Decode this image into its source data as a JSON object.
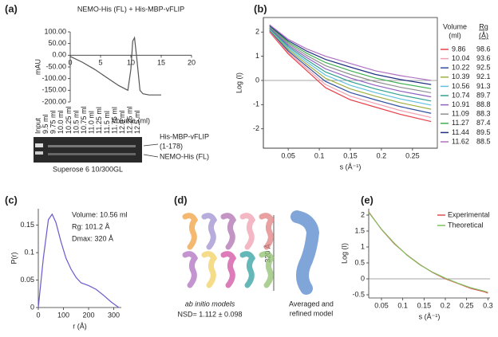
{
  "panel_labels": [
    "(a)",
    "(b)",
    "(c)",
    "(d)",
    "(e)"
  ],
  "gel": {
    "lanes": [
      "Input",
      "9.5 ml",
      "9.75 ml",
      "10.0 ml",
      "10.25 ml",
      "10.5 ml",
      "10.75 ml",
      "11.0 ml",
      "11.25 ml",
      "11.5 ml",
      "11.75 ml",
      "12.0 ml",
      "12.25 ml",
      "12.5 ml"
    ],
    "bands": [
      "His-MBP-vFLIP",
      "(1-178)",
      "NEMO-His (FL)"
    ],
    "column": "Superose 6 10/300GL"
  },
  "models": {
    "ab_initio": "ab initio models",
    "nsd": "NSD= 1.112 ± 0.098",
    "length": "320 Å",
    "averaged": [
      "Averaged and",
      "refined model"
    ]
  },
  "chart_data": [
    {
      "type": "line",
      "title": "NEMO-His (FL) + His-MBP-vFLIP",
      "x_label": "Volume (ml)",
      "y_label": "mAU",
      "color": "#555555",
      "zero_axis": true,
      "x": [
        0,
        2,
        4,
        6,
        8,
        9.5,
        10,
        10.3,
        10.6,
        11,
        11.5,
        12,
        13,
        15
      ],
      "values": [
        -5,
        -30,
        -60,
        -95,
        -130,
        -150,
        -60,
        60,
        75,
        -20,
        -150,
        -165,
        -170,
        -170
      ],
      "xlim": [
        0,
        20
      ],
      "xticks": [
        0,
        5,
        10,
        15,
        20
      ],
      "ylim": [
        -200,
        100
      ],
      "yticks": [
        {
          "value": 100,
          "label": "100.00"
        },
        {
          "value": 50,
          "label": "50.00"
        },
        {
          "value": 0,
          "label": "0.00"
        },
        {
          "value": -50,
          "label": "-50.00"
        },
        {
          "value": -100,
          "label": "-100.00"
        },
        {
          "value": -150,
          "label": "-150.00"
        },
        {
          "value": -200,
          "label": "-200.00"
        }
      ]
    },
    {
      "type": "line",
      "x_label": "s (Å⁻¹)",
      "y_label": "Log (I)",
      "frame": true,
      "zero_line": true,
      "legend_columns": [
        [
          "Volume",
          "(ml)"
        ],
        [
          "Rg",
          "(Å)"
        ]
      ],
      "x": [
        0.02,
        0.05,
        0.08,
        0.11,
        0.15,
        0.19,
        0.23,
        0.28
      ],
      "series": [
        {
          "name": "9.86",
          "rg": "98.6",
          "color": "#e8404a",
          "values": [
            2.0,
            1.1,
            0.4,
            -0.3,
            -0.8,
            -1.1,
            -1.4,
            -1.7
          ]
        },
        {
          "name": "10.04",
          "rg": "93.6",
          "color": "#f0a0b0",
          "values": [
            2.03,
            1.16,
            0.49,
            -0.17,
            -0.65,
            -0.95,
            -1.24,
            -1.53
          ]
        },
        {
          "name": "10.22",
          "rg": "92.5",
          "color": "#3050a0",
          "values": [
            2.06,
            1.22,
            0.58,
            -0.04,
            -0.5,
            -0.8,
            -1.08,
            -1.36
          ]
        },
        {
          "name": "10.39",
          "rg": "92.1",
          "color": "#a0b040",
          "values": [
            2.09,
            1.28,
            0.67,
            0.09,
            -0.35,
            -0.65,
            -0.92,
            -1.19
          ]
        },
        {
          "name": "10.56",
          "rg": "91.3",
          "color": "#60c0e0",
          "values": [
            2.12,
            1.34,
            0.76,
            0.22,
            -0.2,
            -0.5,
            -0.76,
            -1.02
          ]
        },
        {
          "name": "10.74",
          "rg": "89.7",
          "color": "#30a090",
          "values": [
            2.15,
            1.4,
            0.85,
            0.35,
            -0.05,
            -0.35,
            -0.6,
            -0.85
          ]
        },
        {
          "name": "10.91",
          "rg": "88.8",
          "color": "#9060c0",
          "values": [
            2.18,
            1.46,
            0.94,
            0.48,
            0.1,
            -0.2,
            -0.44,
            -0.68
          ]
        },
        {
          "name": "11.09",
          "rg": "88.3",
          "color": "#909090",
          "values": [
            2.21,
            1.52,
            1.03,
            0.61,
            0.25,
            -0.05,
            -0.28,
            -0.51
          ]
        },
        {
          "name": "11.27",
          "rg": "87.4",
          "color": "#40b050",
          "values": [
            2.24,
            1.58,
            1.12,
            0.74,
            0.4,
            0.1,
            -0.12,
            -0.34
          ]
        },
        {
          "name": "11.44",
          "rg": "89.5",
          "color": "#203080",
          "values": [
            2.27,
            1.64,
            1.21,
            0.87,
            0.55,
            0.25,
            0.04,
            -0.17
          ]
        },
        {
          "name": "11.62",
          "rg": "88.5",
          "color": "#b070c0",
          "values": [
            2.3,
            1.7,
            1.3,
            1.0,
            0.7,
            0.4,
            0.2,
            0.0
          ]
        }
      ],
      "xlim": [
        0.01,
        0.29
      ],
      "xticks": [
        0.05,
        0.1,
        0.15,
        0.2,
        0.25
      ],
      "ylim": [
        -2.8,
        2.6
      ],
      "yticks": [
        -2,
        -1,
        0,
        1,
        2
      ]
    },
    {
      "type": "line",
      "x_label": "r (Å)",
      "y_label": "P(r)",
      "color": "#6a5acd",
      "annotations": [
        "Volume:  10.56 ml",
        "Rg:  101.2 Å",
        "Dmax: 320 Å"
      ],
      "x": [
        0,
        20,
        40,
        55,
        70,
        90,
        110,
        130,
        150,
        170,
        200,
        230,
        260,
        290,
        320
      ],
      "values": [
        0,
        0.09,
        0.16,
        0.17,
        0.155,
        0.12,
        0.09,
        0.07,
        0.055,
        0.045,
        0.04,
        0.033,
        0.022,
        0.01,
        0
      ],
      "xlim": [
        0,
        330
      ],
      "xticks": [
        0,
        100,
        200,
        300
      ],
      "ylim": [
        0,
        0.18
      ],
      "yticks": [
        0,
        0.05,
        0.1,
        0.15
      ]
    },
    {
      "type": "line",
      "x_label": "s (Å⁻¹)",
      "y_label": "Log (I)",
      "zero_line": true,
      "legend": "upper right",
      "x": [
        0.02,
        0.05,
        0.08,
        0.11,
        0.14,
        0.17,
        0.2,
        0.23,
        0.26,
        0.29,
        0.3
      ],
      "series": [
        {
          "name": "Experimental",
          "color": "#e05050",
          "values": [
            2.1,
            1.55,
            1.1,
            0.75,
            0.45,
            0.2,
            0.0,
            -0.15,
            -0.3,
            -0.4,
            -0.45
          ]
        },
        {
          "name": "Theoretical",
          "color": "#80c060",
          "values": [
            2.08,
            1.56,
            1.12,
            0.74,
            0.44,
            0.21,
            0.02,
            -0.14,
            -0.28,
            -0.38,
            -0.42
          ]
        }
      ],
      "xlim": [
        0.02,
        0.305
      ],
      "xticks": [
        0.05,
        0.1,
        0.15,
        0.2,
        0.25,
        0.3
      ],
      "ylim": [
        -0.6,
        2.2
      ],
      "yticks": [
        -0.5,
        0,
        0.5,
        1,
        1.5,
        2
      ]
    }
  ]
}
